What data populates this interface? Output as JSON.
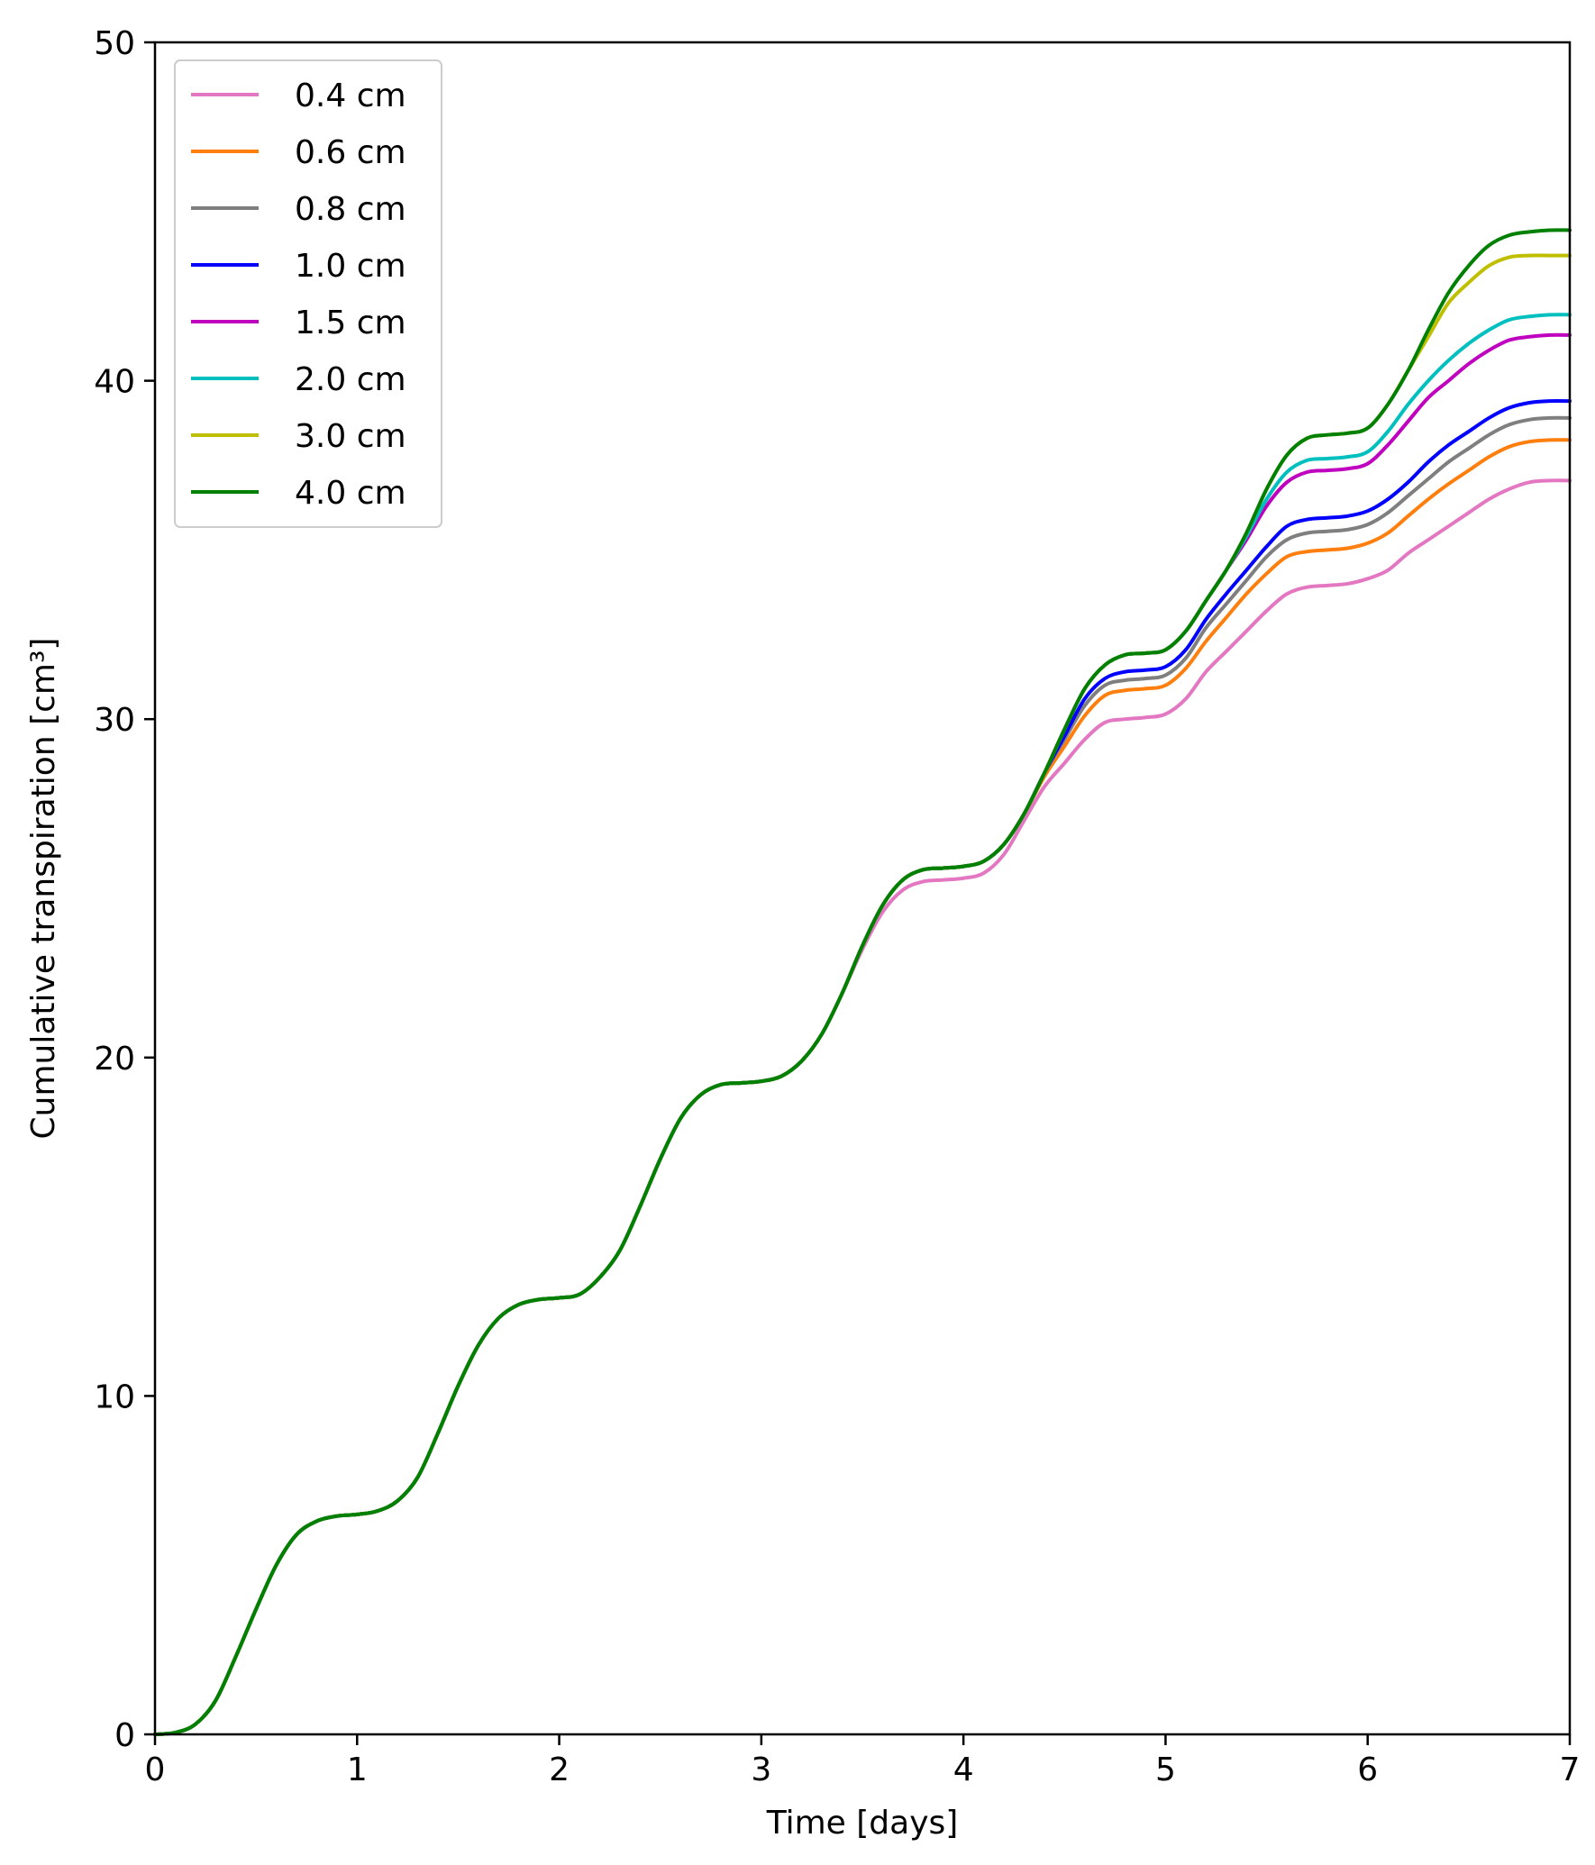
{
  "chart_data": {
    "type": "line",
    "title": "",
    "xlabel": "Time [days]",
    "ylabel": "Cumulative transpiration [cm³]",
    "xlim": [
      0,
      7
    ],
    "ylim": [
      0,
      50
    ],
    "xticks": [
      0,
      1,
      2,
      3,
      4,
      5,
      6,
      7
    ],
    "yticks": [
      0,
      10,
      20,
      30,
      40,
      50
    ],
    "grid": false,
    "legend_position": "top-left",
    "x": [
      0,
      0.1,
      0.2,
      0.3,
      0.4,
      0.5,
      0.6,
      0.7,
      0.8,
      0.9,
      1.0,
      1.1,
      1.2,
      1.3,
      1.4,
      1.5,
      1.6,
      1.7,
      1.8,
      1.9,
      2.0,
      2.1,
      2.2,
      2.3,
      2.4,
      2.5,
      2.6,
      2.7,
      2.8,
      2.9,
      3.0,
      3.1,
      3.2,
      3.3,
      3.4,
      3.5,
      3.6,
      3.7,
      3.8,
      3.9,
      4.0,
      4.1,
      4.2,
      4.3,
      4.4,
      4.5,
      4.6,
      4.7,
      4.8,
      4.9,
      5.0,
      5.1,
      5.2,
      5.3,
      5.4,
      5.5,
      5.6,
      5.7,
      5.8,
      5.9,
      6.0,
      6.1,
      6.2,
      6.3,
      6.4,
      6.5,
      6.6,
      6.7,
      6.8,
      6.9,
      7.0
    ],
    "series": [
      {
        "name": "0.4 cm",
        "color": "#e377c2",
        "values": [
          0,
          0.05,
          0.3,
          1.0,
          2.3,
          3.7,
          5.0,
          5.9,
          6.3,
          6.45,
          6.5,
          6.6,
          6.9,
          7.6,
          8.9,
          10.3,
          11.5,
          12.3,
          12.7,
          12.85,
          12.9,
          13.0,
          13.5,
          14.3,
          15.6,
          17.0,
          18.2,
          18.9,
          19.2,
          19.25,
          19.3,
          19.45,
          19.9,
          20.7,
          21.9,
          23.2,
          24.3,
          24.95,
          25.2,
          25.25,
          25.3,
          25.45,
          26.0,
          27.0,
          28.0,
          28.7,
          29.4,
          29.9,
          30.0,
          30.05,
          30.15,
          30.6,
          31.4,
          32.0,
          32.6,
          33.2,
          33.7,
          33.9,
          33.95,
          34.0,
          34.15,
          34.4,
          34.9,
          35.3,
          35.7,
          36.1,
          36.5,
          36.8,
          37.0,
          37.05,
          37.05
        ]
      },
      {
        "name": "0.6 cm",
        "color": "#ff7f0e",
        "values": [
          0,
          0.05,
          0.3,
          1.0,
          2.3,
          3.7,
          5.0,
          5.9,
          6.3,
          6.45,
          6.5,
          6.6,
          6.9,
          7.6,
          8.9,
          10.3,
          11.5,
          12.3,
          12.7,
          12.85,
          12.9,
          13.0,
          13.5,
          14.3,
          15.6,
          17.0,
          18.2,
          18.9,
          19.2,
          19.25,
          19.3,
          19.45,
          19.9,
          20.7,
          21.9,
          23.3,
          24.5,
          25.25,
          25.55,
          25.6,
          25.65,
          25.8,
          26.3,
          27.2,
          28.3,
          29.2,
          30.1,
          30.7,
          30.85,
          30.9,
          31.0,
          31.5,
          32.3,
          33.0,
          33.7,
          34.3,
          34.8,
          34.95,
          35.0,
          35.05,
          35.2,
          35.5,
          36.0,
          36.5,
          36.95,
          37.35,
          37.75,
          38.05,
          38.2,
          38.25,
          38.25
        ]
      },
      {
        "name": "0.8 cm",
        "color": "#7f7f7f",
        "values": [
          0,
          0.05,
          0.3,
          1.0,
          2.3,
          3.7,
          5.0,
          5.9,
          6.3,
          6.45,
          6.5,
          6.6,
          6.9,
          7.6,
          8.9,
          10.3,
          11.5,
          12.3,
          12.7,
          12.85,
          12.9,
          13.0,
          13.5,
          14.3,
          15.6,
          17.0,
          18.2,
          18.9,
          19.2,
          19.25,
          19.3,
          19.45,
          19.9,
          20.7,
          21.9,
          23.3,
          24.5,
          25.25,
          25.55,
          25.6,
          25.65,
          25.8,
          26.3,
          27.2,
          28.4,
          29.4,
          30.4,
          31.0,
          31.15,
          31.2,
          31.3,
          31.8,
          32.7,
          33.4,
          34.1,
          34.8,
          35.3,
          35.5,
          35.55,
          35.6,
          35.75,
          36.1,
          36.6,
          37.1,
          37.6,
          38.0,
          38.4,
          38.7,
          38.85,
          38.9,
          38.9
        ]
      },
      {
        "name": "1.0 cm",
        "color": "#0000ff",
        "values": [
          0,
          0.05,
          0.3,
          1.0,
          2.3,
          3.7,
          5.0,
          5.9,
          6.3,
          6.45,
          6.5,
          6.6,
          6.9,
          7.6,
          8.9,
          10.3,
          11.5,
          12.3,
          12.7,
          12.85,
          12.9,
          13.0,
          13.5,
          14.3,
          15.6,
          17.0,
          18.2,
          18.9,
          19.2,
          19.25,
          19.3,
          19.45,
          19.9,
          20.7,
          21.9,
          23.3,
          24.5,
          25.25,
          25.55,
          25.6,
          25.65,
          25.8,
          26.3,
          27.2,
          28.4,
          29.5,
          30.6,
          31.2,
          31.4,
          31.45,
          31.55,
          32.05,
          32.95,
          33.7,
          34.4,
          35.1,
          35.7,
          35.9,
          35.95,
          36.0,
          36.15,
          36.5,
          37.0,
          37.6,
          38.1,
          38.5,
          38.9,
          39.2,
          39.35,
          39.4,
          39.4
        ]
      },
      {
        "name": "1.5 cm",
        "color": "#bf00bf",
        "values": [
          0,
          0.05,
          0.3,
          1.0,
          2.3,
          3.7,
          5.0,
          5.9,
          6.3,
          6.45,
          6.5,
          6.6,
          6.9,
          7.6,
          8.9,
          10.3,
          11.5,
          12.3,
          12.7,
          12.85,
          12.9,
          13.0,
          13.5,
          14.3,
          15.6,
          17.0,
          18.2,
          18.9,
          19.2,
          19.25,
          19.3,
          19.45,
          19.9,
          20.7,
          21.9,
          23.3,
          24.5,
          25.25,
          25.55,
          25.6,
          25.65,
          25.8,
          26.3,
          27.2,
          28.4,
          29.7,
          30.9,
          31.6,
          31.9,
          31.95,
          32.05,
          32.6,
          33.5,
          34.4,
          35.3,
          36.3,
          37.0,
          37.3,
          37.35,
          37.4,
          37.55,
          38.1,
          38.8,
          39.5,
          40.0,
          40.5,
          40.9,
          41.2,
          41.3,
          41.35,
          41.35
        ]
      },
      {
        "name": "2.0 cm",
        "color": "#00bfbf",
        "values": [
          0,
          0.05,
          0.3,
          1.0,
          2.3,
          3.7,
          5.0,
          5.9,
          6.3,
          6.45,
          6.5,
          6.6,
          6.9,
          7.6,
          8.9,
          10.3,
          11.5,
          12.3,
          12.7,
          12.85,
          12.9,
          13.0,
          13.5,
          14.3,
          15.6,
          17.0,
          18.2,
          18.9,
          19.2,
          19.25,
          19.3,
          19.45,
          19.9,
          20.7,
          21.9,
          23.3,
          24.5,
          25.25,
          25.55,
          25.6,
          25.65,
          25.8,
          26.3,
          27.2,
          28.4,
          29.7,
          30.9,
          31.6,
          31.9,
          31.95,
          32.05,
          32.6,
          33.5,
          34.4,
          35.4,
          36.5,
          37.3,
          37.65,
          37.7,
          37.75,
          37.9,
          38.5,
          39.3,
          40.0,
          40.6,
          41.1,
          41.5,
          41.8,
          41.9,
          41.95,
          41.95
        ]
      },
      {
        "name": "3.0 cm",
        "color": "#bfbf00",
        "values": [
          0,
          0.05,
          0.3,
          1.0,
          2.3,
          3.7,
          5.0,
          5.9,
          6.3,
          6.45,
          6.5,
          6.6,
          6.9,
          7.6,
          8.9,
          10.3,
          11.5,
          12.3,
          12.7,
          12.85,
          12.9,
          13.0,
          13.5,
          14.3,
          15.6,
          17.0,
          18.2,
          18.9,
          19.2,
          19.25,
          19.3,
          19.45,
          19.9,
          20.7,
          21.9,
          23.3,
          24.5,
          25.25,
          25.55,
          25.6,
          25.65,
          25.8,
          26.3,
          27.2,
          28.4,
          29.7,
          30.9,
          31.6,
          31.9,
          31.95,
          32.05,
          32.6,
          33.5,
          34.4,
          35.5,
          36.8,
          37.8,
          38.3,
          38.4,
          38.45,
          38.6,
          39.3,
          40.3,
          41.3,
          42.3,
          42.9,
          43.4,
          43.65,
          43.7,
          43.7,
          43.7
        ]
      },
      {
        "name": "4.0 cm",
        "color": "#008000",
        "values": [
          0,
          0.05,
          0.3,
          1.0,
          2.3,
          3.7,
          5.0,
          5.9,
          6.3,
          6.45,
          6.5,
          6.6,
          6.9,
          7.6,
          8.9,
          10.3,
          11.5,
          12.3,
          12.7,
          12.85,
          12.9,
          13.0,
          13.5,
          14.3,
          15.6,
          17.0,
          18.2,
          18.9,
          19.2,
          19.25,
          19.3,
          19.45,
          19.9,
          20.7,
          21.9,
          23.3,
          24.5,
          25.25,
          25.55,
          25.6,
          25.65,
          25.8,
          26.3,
          27.2,
          28.4,
          29.7,
          30.9,
          31.6,
          31.9,
          31.95,
          32.05,
          32.6,
          33.5,
          34.4,
          35.5,
          36.8,
          37.8,
          38.3,
          38.4,
          38.45,
          38.6,
          39.3,
          40.3,
          41.5,
          42.6,
          43.4,
          44.0,
          44.3,
          44.4,
          44.45,
          44.45
        ]
      }
    ]
  }
}
